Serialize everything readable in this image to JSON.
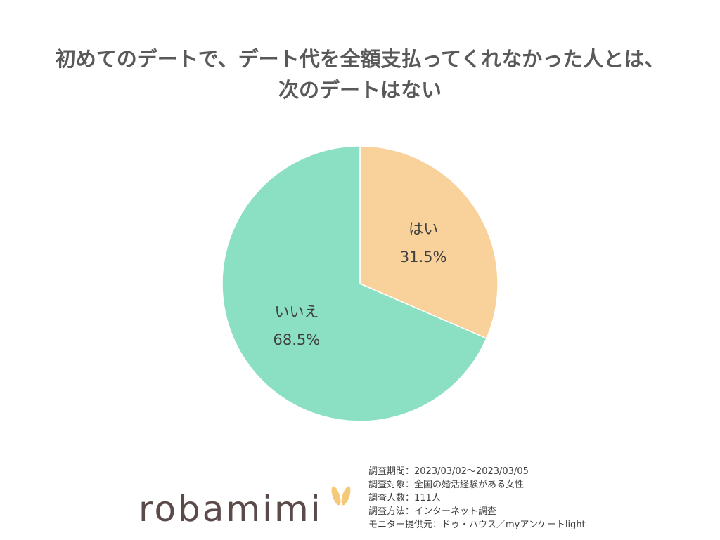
{
  "header": {
    "title_line1": "初めてのデートで、デート代を全額支払ってくれなかった人とは、",
    "title_line2": "次のデートはない"
  },
  "chart_data": {
    "type": "pie",
    "title": "初めてのデートで、デート代を全額支払ってくれなかった人とは、次のデートはない",
    "start": "12 o'clock",
    "direction": "clockwise",
    "slices": [
      {
        "label": "はい",
        "value": 31.5,
        "value_label": "31.5%",
        "color": "#F9D19B"
      },
      {
        "label": "いいえ",
        "value": 68.5,
        "value_label": "68.5%",
        "color": "#8BDFC3"
      }
    ],
    "separator_color": "#ffffff"
  },
  "survey": {
    "period": "調査期間：2023/03/02～2023/03/05",
    "target": "調査対象：全国の婚活経験がある女性",
    "count": "調査人数：111人",
    "method": "調査方法：インターネット調査",
    "provider": "モニター提供元：ドゥ・ハウス／myアンケートlight"
  },
  "logo": {
    "text": "robamimi",
    "ear_color": "#F5C97A",
    "text_color": "#5a4a4a"
  }
}
